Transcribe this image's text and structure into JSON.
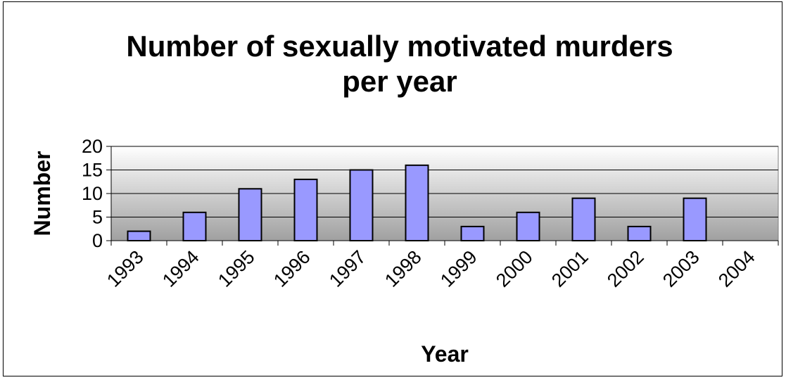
{
  "chart_data": {
    "type": "bar",
    "title_lines": [
      "Number of sexually motivated murders",
      "per year"
    ],
    "xlabel": "Year",
    "ylabel": "Number",
    "categories": [
      "1993",
      "1994",
      "1995",
      "1996",
      "1997",
      "1998",
      "1999",
      "2000",
      "2001",
      "2002",
      "2003",
      "2004"
    ],
    "values": [
      2,
      6,
      11,
      13,
      15,
      16,
      3,
      6,
      9,
      3,
      9,
      null
    ],
    "ylim": [
      0,
      20
    ],
    "yticks": [
      0,
      5,
      10,
      15,
      20
    ],
    "grid": true,
    "legend": "none",
    "colors": {
      "bar_fill": "#9999ff",
      "bar_stroke": "#000000",
      "plot_bg_top": "#ffffff",
      "plot_bg_bottom": "#a0a0a0",
      "gridline": "#000000"
    }
  }
}
